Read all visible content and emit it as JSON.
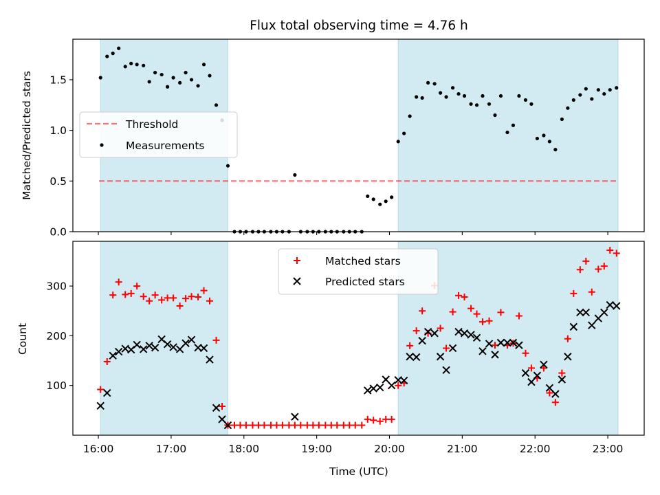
{
  "title": "Flux total observing time = 4.76 h",
  "colors": {
    "shade": "#add8e6",
    "threshold": "#ff0000",
    "measurement": "#000000",
    "matched": "#ff0000",
    "predicted": "#000000"
  },
  "chart_data": [
    {
      "type": "scatter",
      "panel": "top",
      "title": "Flux total observing time = 4.76 h",
      "xlabel": "",
      "ylabel": "Matched/Predicted stars",
      "xlim": [
        15.65,
        23.5
      ],
      "ylim": [
        0,
        1.9
      ],
      "x_ticks": [
        16,
        17,
        18,
        19,
        20,
        21,
        22,
        23
      ],
      "y_ticks": [
        0.0,
        0.5,
        1.0,
        1.5
      ],
      "y_tick_labels": [
        "0.0",
        "0.5",
        "1.0",
        "1.5"
      ],
      "shaded_spans": [
        [
          16.03,
          17.78
        ],
        [
          20.12,
          23.14
        ]
      ],
      "threshold": 0.5,
      "legend_position": "center-left",
      "legend": [
        "Threshold",
        "Measurements"
      ],
      "series": [
        {
          "name": "Measurements",
          "x": [
            16.03,
            16.12,
            16.2,
            16.28,
            16.37,
            16.45,
            16.53,
            16.62,
            16.7,
            16.78,
            16.87,
            16.95,
            17.03,
            17.12,
            17.2,
            17.28,
            17.37,
            17.45,
            17.53,
            17.62,
            17.7,
            17.78,
            17.87,
            17.95,
            18.03,
            18.12,
            18.2,
            18.28,
            18.37,
            18.45,
            18.53,
            18.62,
            18.7,
            18.78,
            18.87,
            18.95,
            19.03,
            19.12,
            19.2,
            19.28,
            19.37,
            19.45,
            19.53,
            19.62,
            19.7,
            19.78,
            19.87,
            19.95,
            20.03,
            20.12,
            20.2,
            20.28,
            20.37,
            20.45,
            20.53,
            20.62,
            20.7,
            20.78,
            20.87,
            20.95,
            21.03,
            21.12,
            21.2,
            21.28,
            21.37,
            21.45,
            21.53,
            21.62,
            21.7,
            21.78,
            21.87,
            21.95,
            22.03,
            22.12,
            22.2,
            22.28,
            22.37,
            22.45,
            22.53,
            22.62,
            22.7,
            22.78,
            22.87,
            22.95,
            23.03,
            23.12
          ],
          "y": [
            1.52,
            1.73,
            1.76,
            1.81,
            1.63,
            1.66,
            1.65,
            1.64,
            1.48,
            1.57,
            1.55,
            1.43,
            1.52,
            1.47,
            1.57,
            1.5,
            1.44,
            1.65,
            1.54,
            1.25,
            1.1,
            0.65,
            0,
            0,
            0,
            0,
            0,
            0,
            0,
            0,
            0,
            0,
            0.56,
            0,
            0,
            0,
            0,
            0,
            0,
            0,
            0,
            0,
            0,
            0,
            0.35,
            0.32,
            0.27,
            0.3,
            0.34,
            0.89,
            0.97,
            1.14,
            1.33,
            1.32,
            1.47,
            1.46,
            1.37,
            1.33,
            1.42,
            1.36,
            1.34,
            1.26,
            1.25,
            1.34,
            1.26,
            1.15,
            1.34,
            0.98,
            1.05,
            1.34,
            1.3,
            1.26,
            0.92,
            0.95,
            0.89,
            0.81,
            1.11,
            1.22,
            1.3,
            1.35,
            1.41,
            1.31,
            1.4,
            1.36,
            1.4,
            1.42
          ]
        }
      ]
    },
    {
      "type": "scatter",
      "panel": "bottom",
      "xlabel": "Time (UTC)",
      "ylabel": "Count",
      "xlim": [
        15.65,
        23.5
      ],
      "ylim": [
        0,
        390
      ],
      "x_ticks": [
        16,
        17,
        18,
        19,
        20,
        21,
        22,
        23
      ],
      "x_tick_labels": [
        "16:00",
        "17:00",
        "18:00",
        "19:00",
        "20:00",
        "21:00",
        "22:00",
        "23:00"
      ],
      "y_ticks": [
        100,
        200,
        300
      ],
      "y_tick_labels": [
        "100",
        "200",
        "300"
      ],
      "shaded_spans": [
        [
          16.03,
          17.78
        ],
        [
          20.12,
          23.14
        ]
      ],
      "legend_position": "top-center",
      "legend": [
        "Matched stars",
        "Predicted stars"
      ],
      "series": [
        {
          "name": "Matched stars",
          "x": [
            16.03,
            16.12,
            16.2,
            16.28,
            16.37,
            16.45,
            16.53,
            16.62,
            16.7,
            16.78,
            16.87,
            16.95,
            17.03,
            17.12,
            17.2,
            17.28,
            17.37,
            17.45,
            17.53,
            17.62,
            17.7,
            17.78,
            17.87,
            17.95,
            18.03,
            18.12,
            18.2,
            18.28,
            18.37,
            18.45,
            18.53,
            18.62,
            18.7,
            18.78,
            18.87,
            18.95,
            19.03,
            19.12,
            19.2,
            19.28,
            19.37,
            19.45,
            19.53,
            19.62,
            19.7,
            19.78,
            19.87,
            19.95,
            20.03,
            20.12,
            20.2,
            20.28,
            20.37,
            20.45,
            20.53,
            20.62,
            20.7,
            20.78,
            20.87,
            20.95,
            21.03,
            21.12,
            21.2,
            21.28,
            21.37,
            21.45,
            21.53,
            21.62,
            21.7,
            21.78,
            21.87,
            21.95,
            22.03,
            22.12,
            22.2,
            22.28,
            22.37,
            22.45,
            22.53,
            22.62,
            22.7,
            22.78,
            22.87,
            22.95,
            23.03,
            23.12
          ],
          "y": [
            92,
            148,
            282,
            308,
            283,
            285,
            300,
            279,
            270,
            282,
            272,
            276,
            276,
            260,
            275,
            279,
            278,
            291,
            270,
            191,
            58,
            20,
            20,
            20,
            20,
            20,
            20,
            20,
            20,
            20,
            20,
            20,
            20,
            20,
            20,
            20,
            20,
            20,
            20,
            20,
            20,
            20,
            20,
            20,
            32,
            30,
            28,
            32,
            32,
            100,
            105,
            180,
            210,
            250,
            205,
            301,
            215,
            175,
            248,
            281,
            278,
            255,
            244,
            228,
            230,
            181,
            247,
            181,
            185,
            240,
            165,
            135,
            115,
            135,
            85,
            66,
            125,
            194,
            285,
            333,
            350,
            288,
            334,
            340,
            372,
            366
          ]
        },
        {
          "name": "Predicted stars",
          "x": [
            16.03,
            16.12,
            16.2,
            16.28,
            16.37,
            16.45,
            16.53,
            16.62,
            16.7,
            16.78,
            16.87,
            16.95,
            17.03,
            17.12,
            17.2,
            17.28,
            17.37,
            17.45,
            17.53,
            17.62,
            17.7,
            17.78,
            18.7,
            19.7,
            19.78,
            19.87,
            19.95,
            20.03,
            20.12,
            20.2,
            20.28,
            20.37,
            20.45,
            20.53,
            20.62,
            20.7,
            20.78,
            20.87,
            20.95,
            21.03,
            21.12,
            21.2,
            21.28,
            21.37,
            21.45,
            21.53,
            21.62,
            21.7,
            21.78,
            21.87,
            21.95,
            22.03,
            22.12,
            22.2,
            22.28,
            22.37,
            22.45,
            22.53,
            22.62,
            22.7,
            22.78,
            22.87,
            22.95,
            23.03,
            23.12
          ],
          "y": [
            59,
            85,
            160,
            168,
            174,
            172,
            182,
            173,
            180,
            176,
            193,
            183,
            177,
            173,
            185,
            192,
            176,
            175,
            152,
            55,
            32,
            20,
            37,
            90,
            94,
            96,
            112,
            100,
            111,
            110,
            158,
            157,
            190,
            208,
            205,
            158,
            131,
            175,
            208,
            205,
            202,
            196,
            169,
            184,
            162,
            186,
            186,
            186,
            181,
            125,
            107,
            120,
            142,
            95,
            83,
            112,
            158,
            218,
            247,
            247,
            221,
            235,
            247,
            262,
            260
          ]
        }
      ]
    }
  ]
}
